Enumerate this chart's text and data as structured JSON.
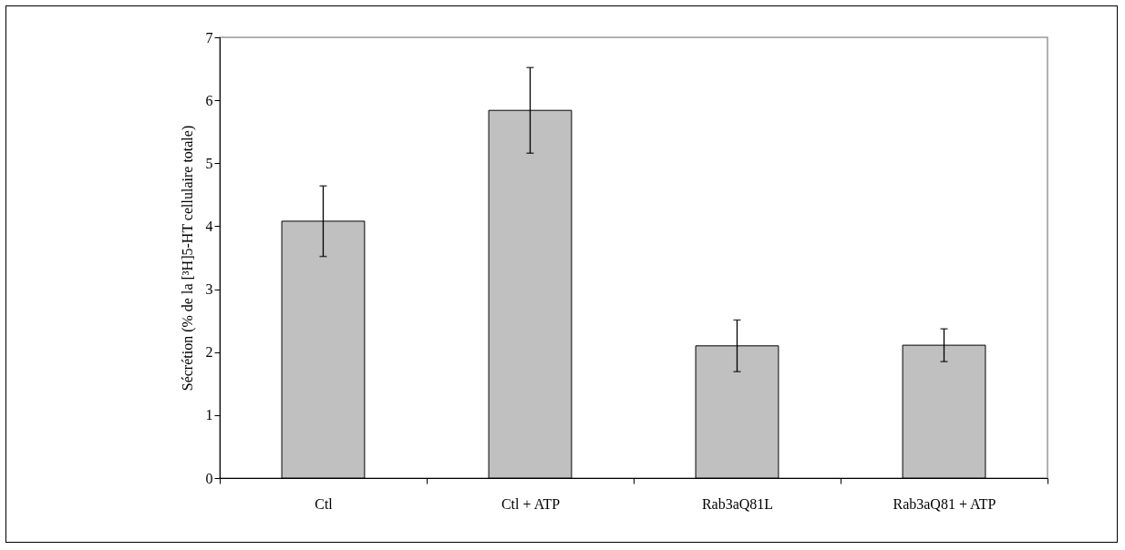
{
  "chart_data": {
    "type": "bar",
    "ylabel": "Sécrétion (% de la [³H]5-HT cellulaire totale)",
    "categories": [
      "Ctl",
      "Ctl + ATP",
      "Rab3aQ81L",
      "Rab3aQ81 + ATP"
    ],
    "values": [
      4.08,
      5.84,
      2.1,
      2.11
    ],
    "errors": [
      0.56,
      0.68,
      0.41,
      0.26
    ],
    "color": "#c0c0c0",
    "ylim": [
      0,
      7
    ],
    "yticks": [
      0,
      1,
      2,
      3,
      4,
      5,
      6,
      7
    ],
    "grid": false
  }
}
